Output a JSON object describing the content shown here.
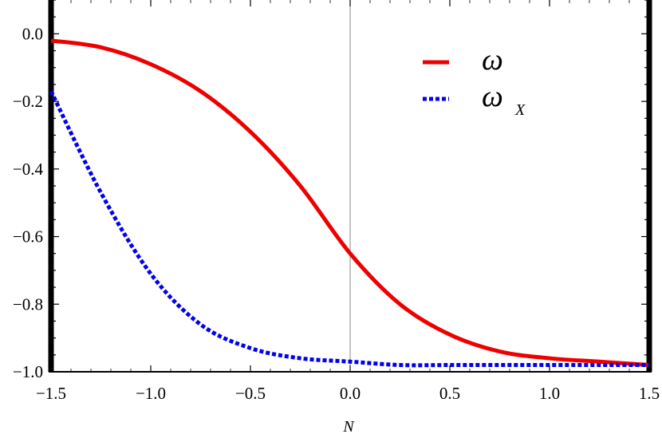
{
  "chart_data": {
    "type": "line",
    "title": "",
    "xlabel": "N",
    "ylabel": "",
    "xlim": [
      -1.5,
      1.5
    ],
    "ylim": [
      -1.0,
      0.1
    ],
    "xticks": [
      -1.5,
      -1.0,
      -0.5,
      0.0,
      0.5,
      1.0,
      1.5
    ],
    "xtick_labels": [
      "−1.5",
      "−1.0",
      "−0.5",
      "0.0",
      "0.5",
      "1.0",
      "1.5"
    ],
    "yticks": [
      0.0,
      -0.2,
      -0.4,
      -0.6,
      -0.8,
      -1.0
    ],
    "ytick_labels": [
      "0.0",
      "−0.2",
      "−0.4",
      "−0.6",
      "−0.8",
      "−1.0"
    ],
    "grid": false,
    "legend_position": "top-right",
    "series": [
      {
        "name": "ω",
        "color": "#ee0000",
        "style": "solid",
        "x": [
          -1.5,
          -1.25,
          -1.0,
          -0.75,
          -0.5,
          -0.25,
          0.0,
          0.25,
          0.5,
          0.75,
          1.0,
          1.25,
          1.5
        ],
        "y": [
          -0.02,
          -0.04,
          -0.09,
          -0.17,
          -0.29,
          -0.45,
          -0.65,
          -0.8,
          -0.89,
          -0.94,
          -0.96,
          -0.97,
          -0.98
        ]
      },
      {
        "name": "ω",
        "name_subscript": "X",
        "color": "#0000ee",
        "style": "dotted",
        "x": [
          -1.5,
          -1.25,
          -1.0,
          -0.75,
          -0.5,
          -0.25,
          0.0,
          0.25,
          0.5,
          0.75,
          1.0,
          1.25,
          1.5
        ],
        "y": [
          -0.17,
          -0.47,
          -0.71,
          -0.86,
          -0.93,
          -0.96,
          -0.97,
          -0.98,
          -0.98,
          -0.98,
          -0.98,
          -0.98,
          -0.98
        ]
      }
    ]
  }
}
